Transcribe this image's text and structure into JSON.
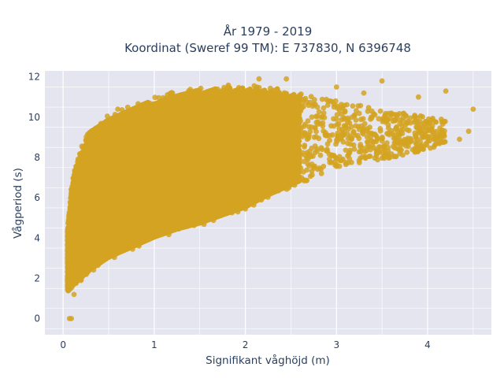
{
  "chart_data": {
    "type": "scatter",
    "title_lines": [
      "År 1979 - 2019",
      "Koordinat (Sweref 99 TM): E 737830, N 6396748"
    ],
    "xlabel": "Signifikant våghöjd (m)",
    "ylabel": "Vågperiod (s)",
    "xlim": [
      -0.2,
      4.7
    ],
    "ylim": [
      -0.8,
      12.3
    ],
    "xticks": [
      0,
      1,
      2,
      3,
      4
    ],
    "yticks": [
      0,
      2,
      4,
      6,
      8,
      10,
      12
    ],
    "grid": true,
    "legend": "none",
    "marker_color": "#d4a321",
    "plot_background": "#e5e5ef",
    "envelope": {
      "x": [
        0.05,
        0.1,
        0.2,
        0.3,
        0.5,
        0.75,
        1.0,
        1.25,
        1.5,
        1.75,
        2.0,
        2.25,
        2.5,
        2.75,
        3.0,
        3.25,
        3.5,
        3.75,
        4.0,
        4.2
      ],
      "y_low": [
        1.3,
        1.5,
        1.9,
        2.3,
        2.9,
        3.4,
        3.9,
        4.3,
        4.6,
        5.0,
        5.4,
        6.0,
        6.5,
        7.0,
        7.4,
        7.7,
        7.9,
        8.1,
        8.4,
        8.6
      ],
      "y_high": [
        4.5,
        7.0,
        8.5,
        9.5,
        10.1,
        10.6,
        11.0,
        11.3,
        11.5,
        11.6,
        11.6,
        11.5,
        11.3,
        11.0,
        10.8,
        10.6,
        10.4,
        10.2,
        10.0,
        9.8
      ]
    },
    "outliers": [
      {
        "x": 0.07,
        "y": 0.0
      },
      {
        "x": 0.09,
        "y": 0.0
      },
      {
        "x": 0.12,
        "y": 1.2
      },
      {
        "x": 3.5,
        "y": 11.8
      },
      {
        "x": 3.6,
        "y": 10.2
      },
      {
        "x": 3.9,
        "y": 11.0
      },
      {
        "x": 4.05,
        "y": 9.0
      },
      {
        "x": 4.15,
        "y": 9.9
      },
      {
        "x": 4.2,
        "y": 11.3
      },
      {
        "x": 4.35,
        "y": 8.9
      },
      {
        "x": 4.45,
        "y": 9.3
      },
      {
        "x": 4.5,
        "y": 10.4
      },
      {
        "x": 2.15,
        "y": 11.9
      },
      {
        "x": 2.45,
        "y": 11.9
      },
      {
        "x": 1.2,
        "y": 11.2
      },
      {
        "x": 0.6,
        "y": 10.4
      },
      {
        "x": 3.0,
        "y": 11.5
      },
      {
        "x": 3.3,
        "y": 11.2
      }
    ]
  }
}
